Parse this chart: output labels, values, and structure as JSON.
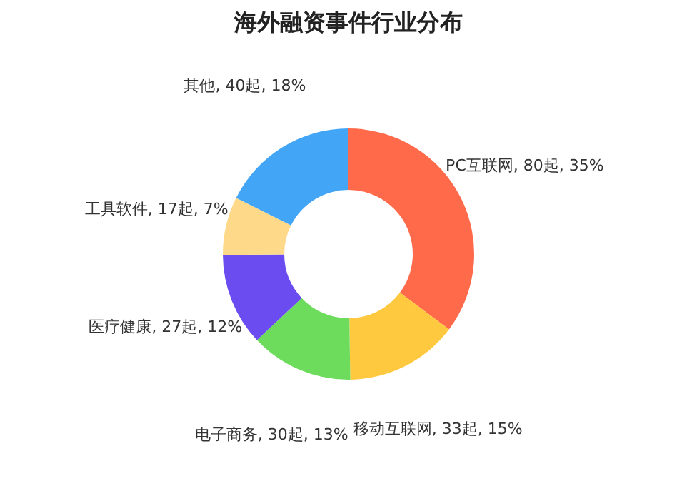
{
  "chart_data": {
    "type": "donut",
    "title": "海外融资事件行业分布",
    "categories": [
      "PC互联网",
      "移动互联网",
      "电子商务",
      "医疗健康",
      "工具软件",
      "其他"
    ],
    "values": [
      80,
      33,
      30,
      27,
      17,
      40
    ],
    "value_labels": [
      "80起, 35%",
      "33起, 15%",
      "30起, 13%",
      "27起, 12%",
      "17起, 7%",
      "40起, 18%"
    ],
    "colors": [
      "#ff6b4a",
      "#ffc93f",
      "#6ddc5c",
      "#6a4cf0",
      "#ffd98a",
      "#42a5f5"
    ],
    "legend": false
  }
}
